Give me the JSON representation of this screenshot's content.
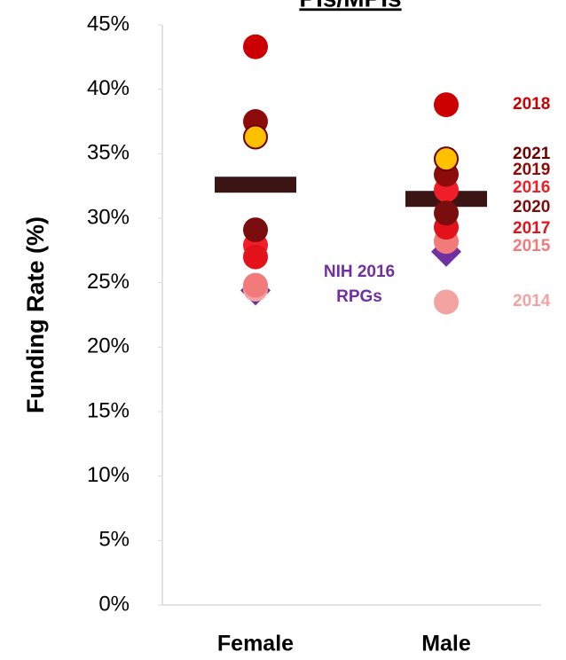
{
  "chart_data": {
    "type": "dot",
    "title": "PIs/MPIs",
    "y_label": "Funding Rate (%)",
    "categories": [
      "Female",
      "Male"
    ],
    "ylim": [
      0,
      45
    ],
    "yticks": [
      {
        "value": 0,
        "label": "0%"
      },
      {
        "value": 5,
        "label": "5%"
      },
      {
        "value": 10,
        "label": "10%"
      },
      {
        "value": 15,
        "label": "15%"
      },
      {
        "value": 20,
        "label": "20%"
      },
      {
        "value": 25,
        "label": "25%"
      },
      {
        "value": 30,
        "label": "30%"
      },
      {
        "value": 35,
        "label": "35%"
      },
      {
        "value": 40,
        "label": "40%"
      },
      {
        "value": 45,
        "label": "45%"
      }
    ],
    "series": [
      {
        "name": "2014",
        "color": "#f4a3a3",
        "values": [
          24.5,
          23.5
        ]
      },
      {
        "name": "2015",
        "color": "#f27a7a",
        "values": [
          24.8,
          28.2
        ]
      },
      {
        "name": "2016",
        "color": "#f01e28",
        "values": [
          27.9,
          32.2
        ]
      },
      {
        "name": "2017",
        "color": "#e3121a",
        "values": [
          27.0,
          29.3
        ]
      },
      {
        "name": "2018",
        "color": "#cc0000",
        "values": [
          43.3,
          38.8
        ]
      },
      {
        "name": "2019",
        "color": "#8e0b0b",
        "values": [
          37.5,
          33.4
        ]
      },
      {
        "name": "2020",
        "color": "#7a0d0d",
        "values": [
          29.1,
          30.4
        ]
      },
      {
        "name": "2021",
        "color": "#ffc000",
        "label_color": "#6e0000",
        "values": [
          36.3,
          34.6
        ]
      }
    ],
    "means": {
      "color": "#3b1414",
      "values": [
        32.6,
        31.5
      ]
    },
    "reference": {
      "label": [
        "NIH 2016",
        "RPGs"
      ],
      "color": "#7030a0",
      "values": [
        24.4,
        27.4
      ]
    }
  }
}
